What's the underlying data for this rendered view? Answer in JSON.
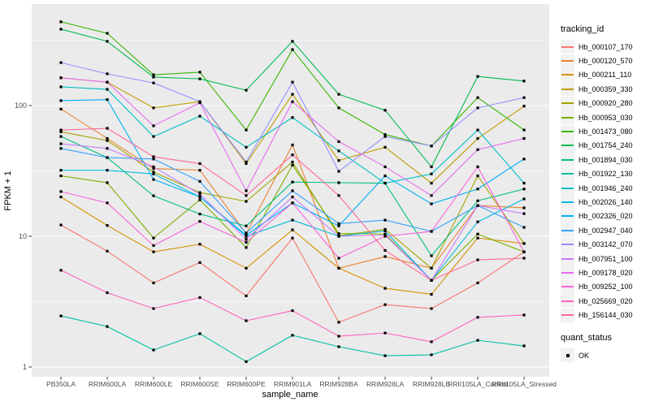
{
  "window": {
    "background": "#FFFFFF"
  },
  "axes": {
    "x_title": "sample_name",
    "y_title": "FPKM + 1",
    "tick_color": "#4D4D4D",
    "axis_title_color": "#000000"
  },
  "legend": {
    "tracking_title": "tracking_id",
    "quant_title": "quant_status",
    "quant_items": [
      {
        "label": "OK",
        "swatch": "black-square"
      }
    ],
    "key_bg": "#F2F2F2"
  },
  "chart_data": {
    "type": "line",
    "title": "",
    "xlabel": "sample_name",
    "ylabel": "FPKM + 1",
    "y_scale": "log10",
    "y_ticks": [
      1,
      10,
      100
    ],
    "y_minor_ticks": [
      3.162,
      31.62,
      316.2
    ],
    "ylim": [
      0.85,
      570
    ],
    "grid": true,
    "panel_bg": "#EBEBEB",
    "gridline_color": "#FFFFFF",
    "point_shape": "black-square",
    "point_color": "#000000",
    "legend_position": "right",
    "categories": [
      "PB350LA",
      "RRIM600LA",
      "RRIM600LE",
      "RRIM600SE",
      "RRIM600PE",
      "RRIM901LA",
      "RRIM928BA",
      "RRIM928LA",
      "RRIM928LE",
      "RRII105LA_Control",
      "RRII105LA_Stressed"
    ],
    "series": [
      {
        "name": "Hb_000107_170",
        "color": "#F8766D",
        "values": [
          12.2,
          7.7,
          4.4,
          6.3,
          3.5,
          9.7,
          2.2,
          3.0,
          2.8,
          4.4,
          7.6
        ]
      },
      {
        "name": "Hb_000120_570",
        "color": "#EA8331",
        "values": [
          94,
          56,
          33,
          32,
          10.5,
          50,
          5.7,
          7.0,
          5.7,
          17.2,
          16.5
        ]
      },
      {
        "name": "Hb_000211_110",
        "color": "#D89000",
        "values": [
          20,
          12.1,
          7.6,
          8.7,
          5.7,
          11.2,
          5.7,
          4.0,
          3.6,
          9.7,
          8.8
        ]
      },
      {
        "name": "Hb_000359_330",
        "color": "#C09B00",
        "values": [
          163,
          151,
          96,
          107,
          36,
          122,
          38,
          48,
          25.5,
          56,
          99
        ]
      },
      {
        "name": "Hb_000920_280",
        "color": "#A3A500",
        "values": [
          63,
          54,
          31,
          21.6,
          18.5,
          37,
          10.1,
          11.3,
          5.7,
          29,
          8.8
        ]
      },
      {
        "name": "Hb_000953_030",
        "color": "#7CAE00",
        "values": [
          29,
          25.7,
          9.7,
          19,
          8.2,
          35,
          10.5,
          10.4,
          4.6,
          10.4,
          7.6
        ]
      },
      {
        "name": "Hb_001473_080",
        "color": "#39B600",
        "values": [
          437,
          357,
          172,
          180,
          65,
          268,
          96,
          60,
          49,
          115,
          65
        ]
      },
      {
        "name": "Hb_001754_240",
        "color": "#00BB4E",
        "values": [
          384,
          310,
          165,
          160,
          131,
          310,
          122,
          92,
          34,
          167,
          154
        ]
      },
      {
        "name": "Hb_001894_030",
        "color": "#00BF7D",
        "values": [
          58,
          40,
          20.4,
          14.8,
          12,
          26,
          25.7,
          25.5,
          7.1,
          18.7,
          23
        ]
      },
      {
        "name": "Hb_001922_130",
        "color": "#00C1A3",
        "values": [
          2.46,
          2.04,
          1.35,
          1.8,
          1.1,
          1.75,
          1.43,
          1.22,
          1.24,
          1.6,
          1.45
        ]
      },
      {
        "name": "Hb_001946_240",
        "color": "#00BFC4",
        "values": [
          139,
          133,
          58,
          83,
          48,
          81,
          45,
          25.5,
          30,
          65,
          25.5
        ]
      },
      {
        "name": "Hb_002026_140",
        "color": "#00BAE0",
        "values": [
          32,
          32,
          30,
          20,
          10,
          13.3,
          10,
          11,
          4.6,
          12.9,
          19.3
        ]
      },
      {
        "name": "Hb_002326_020",
        "color": "#00B0F6",
        "values": [
          109,
          111,
          27.2,
          20,
          10.2,
          18,
          12,
          29,
          17.7,
          23,
          39
        ]
      },
      {
        "name": "Hb_002947_040",
        "color": "#35A2FF",
        "values": [
          47,
          40,
          39,
          26.3,
          10.6,
          22.3,
          12.5,
          13.3,
          10.9,
          17.2,
          11.7
        ]
      },
      {
        "name": "Hb_003142_070",
        "color": "#9590FF",
        "values": [
          213,
          175,
          149,
          107,
          37,
          151,
          31.4,
          58,
          49,
          96,
          115
        ]
      },
      {
        "name": "Hb_007951_100",
        "color": "#C77CFF",
        "values": [
          51,
          47,
          34,
          21,
          9.5,
          20,
          10,
          10.2,
          4.6,
          17.2,
          14.9
        ]
      },
      {
        "name": "Hb_009178_020",
        "color": "#E76BF3",
        "values": [
          163,
          151,
          70,
          105,
          22.3,
          107,
          53,
          34,
          20.5,
          46,
          56
        ]
      },
      {
        "name": "Hb_009252_100",
        "color": "#FA62DB",
        "values": [
          22,
          18,
          8.5,
          13,
          9,
          18,
          6.8,
          10,
          10.9,
          34,
          7.6
        ]
      },
      {
        "name": "Hb_025669_020",
        "color": "#FF62BC",
        "values": [
          5.5,
          3.7,
          2.8,
          3.4,
          2.26,
          2.7,
          1.72,
          1.82,
          1.56,
          2.4,
          2.5
        ]
      },
      {
        "name": "Hb_156144_030",
        "color": "#FF6A98",
        "values": [
          65,
          67,
          40.6,
          36,
          20.5,
          42,
          20.5,
          7.8,
          4.6,
          6.6,
          6.8
        ]
      }
    ]
  }
}
